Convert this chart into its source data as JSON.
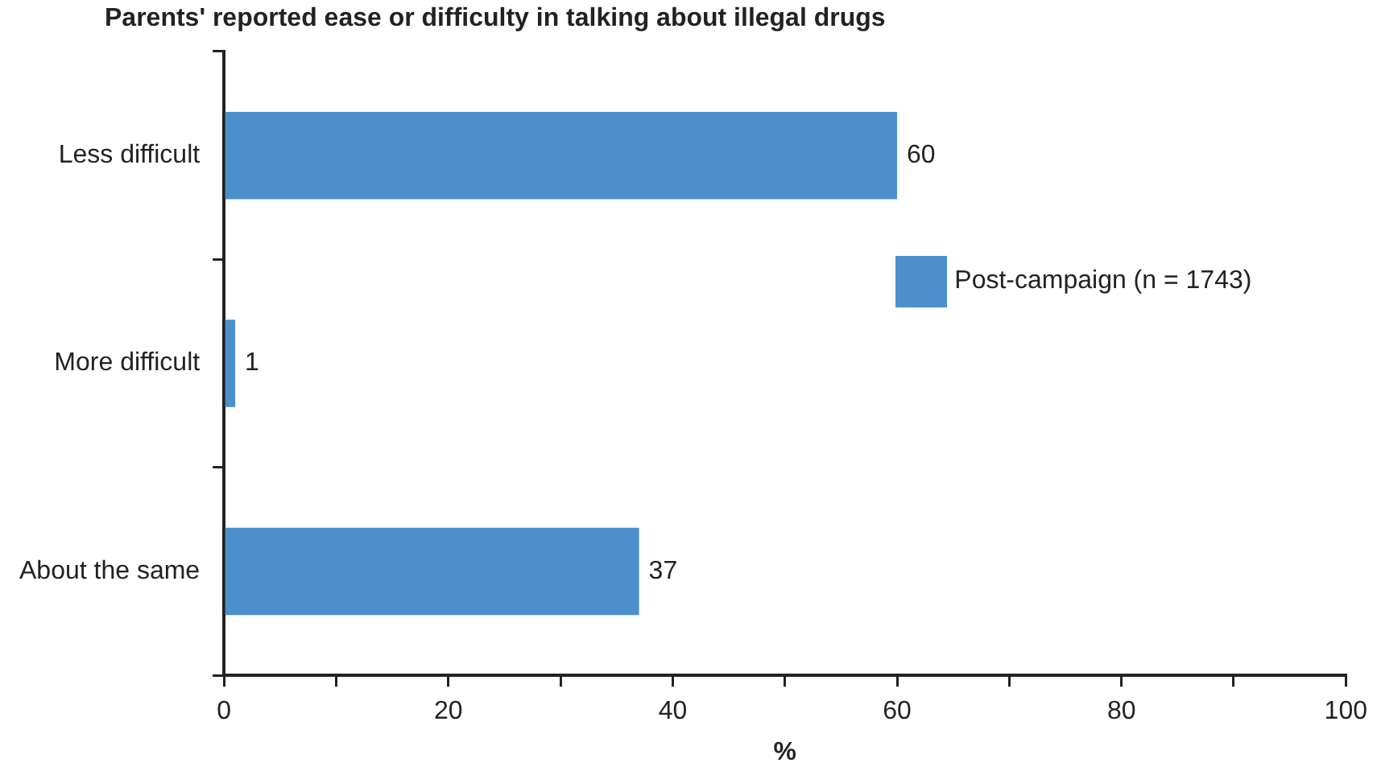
{
  "chart_data": {
    "type": "bar",
    "orientation": "horizontal",
    "title": "Parents' reported ease or difficulty in talking about illegal drugs",
    "xlabel": "%",
    "categories": [
      "Less difficult",
      "More difficult",
      "About the same"
    ],
    "series": [
      {
        "name": "Post-campaign (n = 1743)",
        "color": "#4b8fcc",
        "values": [
          60,
          1,
          37
        ]
      }
    ],
    "xlim": [
      0,
      100
    ],
    "xticks": [
      0,
      {
        "value": 10,
        "label": null
      },
      20,
      {
        "value": 30,
        "label": null
      },
      40,
      {
        "value": 50,
        "label": null
      },
      60,
      {
        "value": 70,
        "label": null
      },
      80,
      {
        "value": 90,
        "label": null
      },
      100
    ],
    "data_labels": true,
    "grid": false,
    "legend": "right"
  }
}
